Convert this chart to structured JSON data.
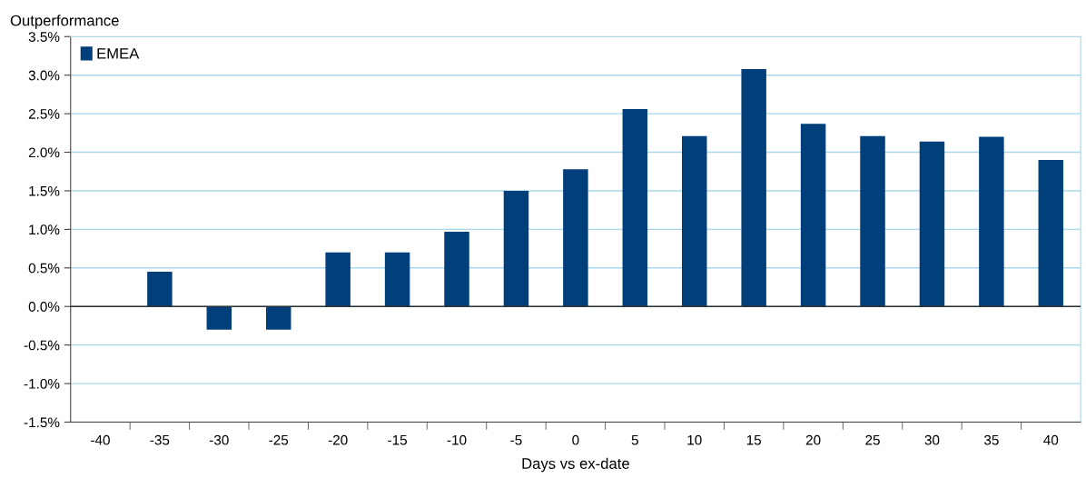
{
  "chart_data": {
    "type": "bar",
    "ylabel": "Outperformance",
    "xlabel": "Days vs ex-date",
    "categories": [
      "-40",
      "-35",
      "-30",
      "-25",
      "-20",
      "-15",
      "-10",
      "-5",
      "0",
      "5",
      "10",
      "15",
      "20",
      "25",
      "30",
      "35",
      "40"
    ],
    "series": [
      {
        "name": "EMEA",
        "color": "#003f7a",
        "values": [
          null,
          0.45,
          -0.3,
          -0.3,
          0.7,
          0.7,
          0.97,
          1.5,
          1.78,
          2.56,
          2.21,
          3.08,
          2.37,
          2.21,
          2.14,
          2.2,
          1.9
        ]
      }
    ],
    "ylim": [
      -1.5,
      3.5
    ],
    "yticks": [
      {
        "value": -1.5,
        "label": "-1.5%"
      },
      {
        "value": -1.0,
        "label": "-1.0%"
      },
      {
        "value": -0.5,
        "label": "-0.5%"
      },
      {
        "value": 0.0,
        "label": "0.0%"
      },
      {
        "value": 0.5,
        "label": "0.5%"
      },
      {
        "value": 1.0,
        "label": "1.0%"
      },
      {
        "value": 1.5,
        "label": "1.5%"
      },
      {
        "value": 2.0,
        "label": "2.0%"
      },
      {
        "value": 2.5,
        "label": "2.5%"
      },
      {
        "value": 3.0,
        "label": "3.0%"
      },
      {
        "value": 3.5,
        "label": "3.5%"
      }
    ],
    "grid": "y",
    "legend": "top left"
  }
}
